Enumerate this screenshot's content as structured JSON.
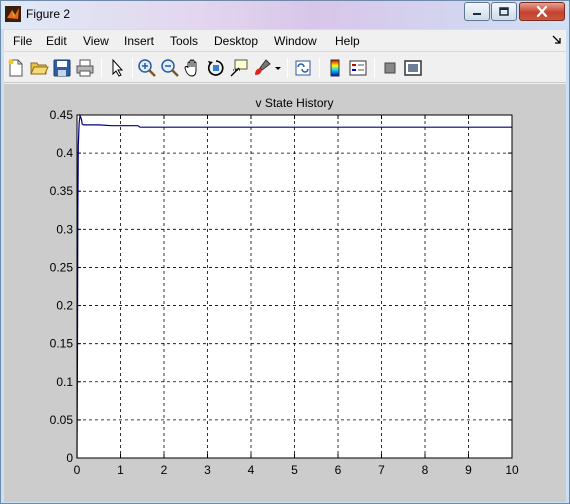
{
  "window": {
    "title": "Figure 2"
  },
  "menu": {
    "items": [
      "File",
      "Edit",
      "View",
      "Insert",
      "Tools",
      "Desktop",
      "Window",
      "Help"
    ],
    "extra_icon": "dock-arrow-icon"
  },
  "toolbar": {
    "buttons": [
      "new-figure-icon",
      "open-file-icon",
      "save-icon",
      "print-icon",
      "edit-plot-arrow-icon",
      "zoom-in-icon",
      "zoom-out-icon",
      "pan-hand-icon",
      "rotate-3d-icon",
      "data-cursor-icon",
      "brush-icon",
      "brush-dropdown-icon",
      "link-plot-icon",
      "colorbar-icon",
      "legend-icon",
      "hide-plot-tools-icon",
      "show-plot-tools-icon"
    ]
  },
  "colors": {
    "plot_bg": "#ffffff",
    "figure_bg": "#cccccc",
    "line": "#00007f"
  },
  "chart_data": {
    "type": "line",
    "title": "v State History",
    "xlabel": "",
    "ylabel": "",
    "xlim": [
      0,
      10
    ],
    "ylim": [
      0,
      0.45
    ],
    "xticks": [
      0,
      1,
      2,
      3,
      4,
      5,
      6,
      7,
      8,
      9,
      10
    ],
    "yticks": [
      0,
      0.05,
      0.1,
      0.15,
      0.2,
      0.25,
      0.3,
      0.35,
      0.4,
      0.45
    ],
    "ytick_labels": [
      "0",
      "0.05",
      "0.1",
      "0.15",
      "0.2",
      "0.25",
      "0.3",
      "0.35",
      "0.4",
      "0.45"
    ],
    "grid": true,
    "series": [
      {
        "x": [
          0,
          0.01,
          0.02,
          0.03,
          0.05,
          0.07,
          0.1,
          0.12,
          0.15,
          0.2,
          0.3,
          0.5,
          0.8,
          1.0,
          1.4,
          1.45,
          1.5,
          2,
          3,
          5,
          7,
          10
        ],
        "values": [
          0,
          0.13,
          0.33,
          0.41,
          0.44,
          0.449,
          0.445,
          0.438,
          0.437,
          0.437,
          0.437,
          0.437,
          0.436,
          0.436,
          0.436,
          0.434,
          0.434,
          0.434,
          0.434,
          0.434,
          0.434,
          0.434
        ]
      }
    ]
  }
}
